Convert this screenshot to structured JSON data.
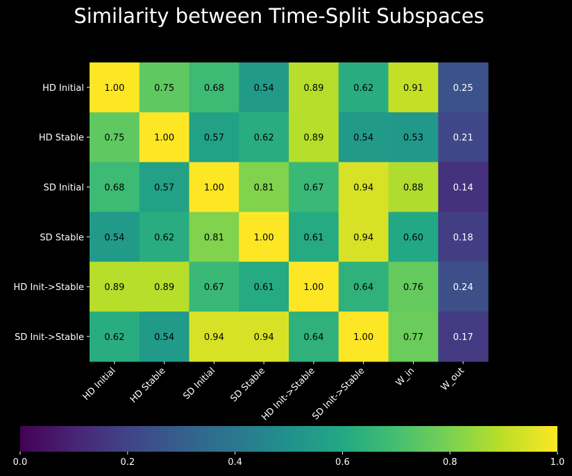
{
  "chart_data": {
    "type": "heatmap",
    "title": "Similarity between Time-Split Subspaces",
    "rows": [
      "HD Initial",
      "HD Stable",
      "SD Initial",
      "SD Stable",
      "HD Init->Stable",
      "SD Init->Stable"
    ],
    "columns": [
      "HD Initial",
      "HD Stable",
      "SD Initial",
      "SD Stable",
      "HD Init->Stable",
      "SD Init->Stable",
      "W_in",
      "W_out"
    ],
    "values": [
      [
        1.0,
        0.75,
        0.68,
        0.54,
        0.89,
        0.62,
        0.91,
        0.25
      ],
      [
        0.75,
        1.0,
        0.57,
        0.62,
        0.89,
        0.54,
        0.53,
        0.21
      ],
      [
        0.68,
        0.57,
        1.0,
        0.81,
        0.67,
        0.94,
        0.88,
        0.14
      ],
      [
        0.54,
        0.62,
        0.81,
        1.0,
        0.61,
        0.94,
        0.6,
        0.18
      ],
      [
        0.89,
        0.89,
        0.67,
        0.61,
        1.0,
        0.64,
        0.76,
        0.24
      ],
      [
        0.62,
        0.54,
        0.94,
        0.94,
        0.64,
        1.0,
        0.77,
        0.17
      ]
    ],
    "colormap": "viridis",
    "vmin": 0.0,
    "vmax": 1.0,
    "colorbar": {
      "orientation": "horizontal",
      "ticks": [
        "0.0",
        "0.2",
        "0.4",
        "0.6",
        "0.8",
        "1.0"
      ]
    },
    "background": "#000000",
    "text_color": "#ffffff",
    "cell_text_color": "#000000"
  }
}
